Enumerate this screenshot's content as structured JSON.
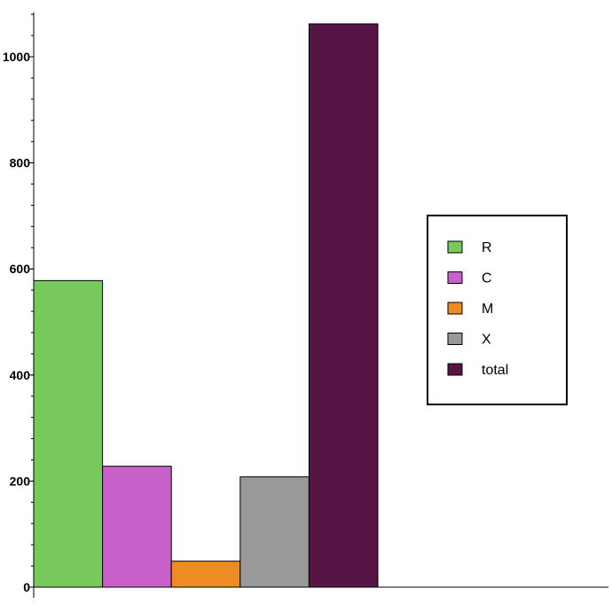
{
  "chart_data": {
    "type": "bar",
    "title": "",
    "xlabel": "",
    "ylabel": "",
    "categories": [
      "R",
      "C",
      "M",
      "X",
      "total"
    ],
    "values": [
      578,
      228,
      49,
      208,
      1062
    ],
    "colors": [
      "#78c95c",
      "#c761c9",
      "#ee8c24",
      "#999999",
      "#571546"
    ],
    "ylim": [
      0,
      1080
    ],
    "yticks": [
      0,
      200,
      400,
      600,
      800,
      1000
    ],
    "ytick_labels": [
      "0",
      "200",
      "400",
      "600",
      "800",
      "1000"
    ],
    "minor_tick_step": 40,
    "grid": false,
    "legend": {
      "placement": "right",
      "entries": [
        "R",
        "C",
        "M",
        "X",
        "total"
      ]
    }
  }
}
